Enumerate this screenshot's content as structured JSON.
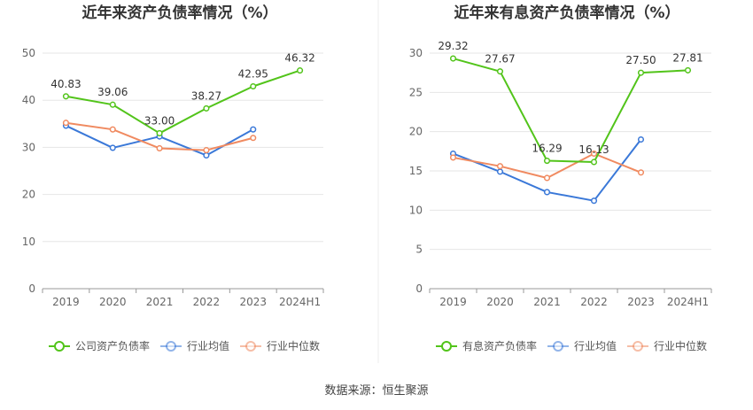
{
  "source": "数据来源：恒生聚源",
  "chart_data": [
    {
      "type": "line",
      "title": "近年来资产负债率情况（%）",
      "categories": [
        "2019",
        "2020",
        "2021",
        "2022",
        "2023",
        "2024H1"
      ],
      "ylim": [
        0,
        50
      ],
      "yticks": [
        0,
        10,
        20,
        30,
        40,
        50
      ],
      "grid": true,
      "legend_position": "bottom",
      "series": [
        {
          "name": "公司资产负债率",
          "color": "#52c41a",
          "values": [
            40.83,
            39.06,
            33.0,
            38.27,
            42.95,
            46.32
          ],
          "labels": [
            "40.83",
            "39.06",
            "33.00",
            "38.27",
            "42.95",
            "46.32"
          ]
        },
        {
          "name": "行业均值",
          "color": "#3a78d8",
          "values": [
            34.6,
            29.9,
            32.3,
            28.3,
            33.8,
            null
          ]
        },
        {
          "name": "行业中位数",
          "color": "#f08a60",
          "values": [
            35.2,
            33.8,
            29.8,
            29.4,
            32.0,
            null
          ]
        }
      ]
    },
    {
      "type": "line",
      "title": "近年来有息资产负债率情况（%）",
      "categories": [
        "2019",
        "2020",
        "2021",
        "2022",
        "2023",
        "2024H1"
      ],
      "ylim": [
        0,
        30
      ],
      "yticks": [
        0,
        5,
        10,
        15,
        20,
        25,
        30
      ],
      "grid": true,
      "legend_position": "bottom",
      "series": [
        {
          "name": "有息资产负债率",
          "color": "#52c41a",
          "values": [
            29.32,
            27.67,
            16.29,
            16.13,
            27.5,
            27.81
          ],
          "labels": [
            "29.32",
            "27.67",
            "16.29",
            "16.13",
            "27.50",
            "27.81"
          ]
        },
        {
          "name": "行业均值",
          "color": "#3a78d8",
          "values": [
            17.2,
            14.9,
            12.3,
            11.2,
            19.0,
            null
          ]
        },
        {
          "name": "行业中位数",
          "color": "#f08a60",
          "values": [
            16.7,
            15.6,
            14.1,
            17.2,
            14.8,
            null
          ]
        }
      ]
    }
  ]
}
